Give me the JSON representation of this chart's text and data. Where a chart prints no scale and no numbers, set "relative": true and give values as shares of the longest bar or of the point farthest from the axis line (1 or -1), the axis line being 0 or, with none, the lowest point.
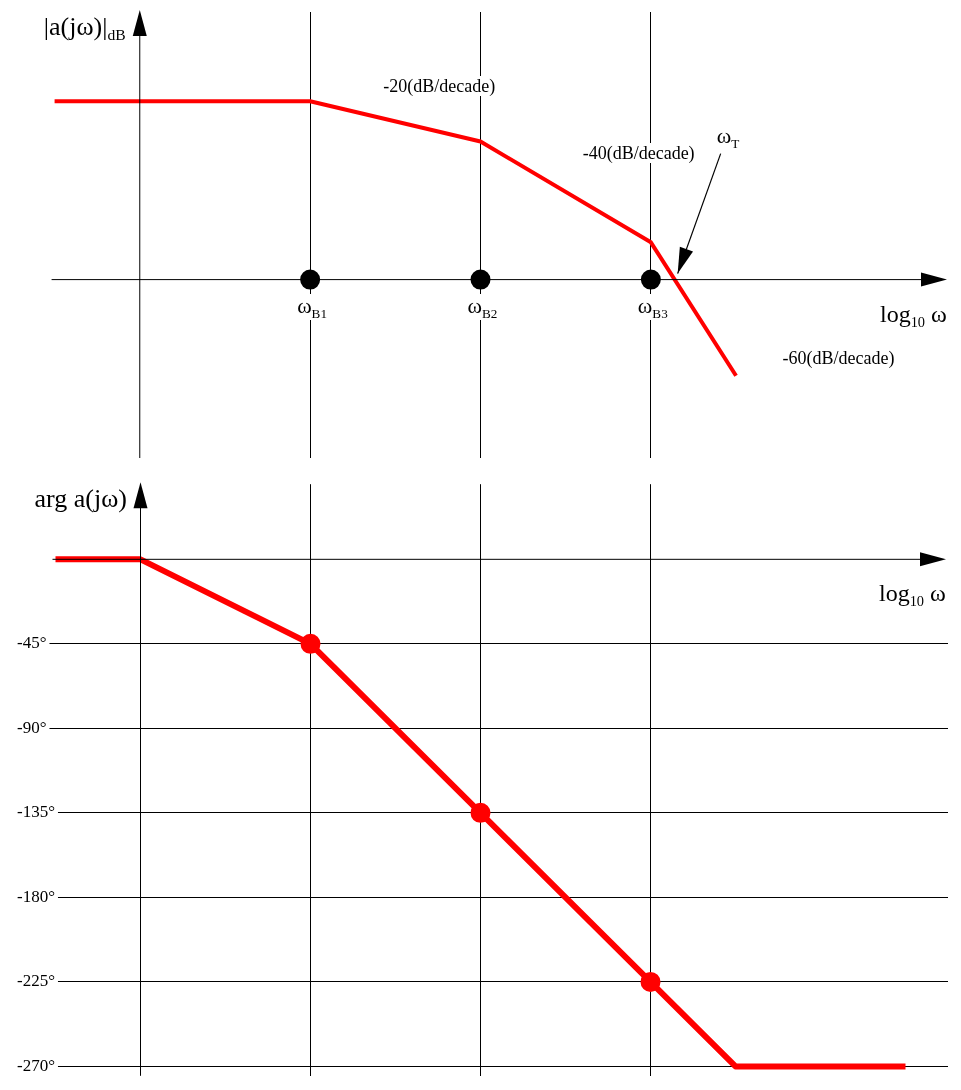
{
  "chart_data": [
    {
      "type": "line",
      "relative": true,
      "ylabel": "|a(jω)|$_{dB}$",
      "xlabel": "log$_{10}$ ω",
      "categories": [
        null,
        null,
        null,
        "ω$_{B1}$",
        null,
        "ω$_{B2}$",
        null,
        "ω$_{B3}$",
        null,
        null,
        null
      ],
      "grid": "x",
      "tick_labels": "x",
      "marker": "none",
      "series": [
        {
          "color": "#ff0000",
          "values": [
            1,
            1,
            null,
            1,
            null,
            0.774,
            null,
            0.209,
            -0.539,
            null,
            null
          ]
        },
        {
          "type": "scatter",
          "marker": "circle",
          "color": "#000000",
          "values": [
            null,
            null,
            null,
            0,
            null,
            0,
            null,
            0,
            null,
            null,
            null
          ]
        }
      ],
      "annotations": [
        "-20(dB/decade)",
        "-40(dB/decade)",
        "-60(dB/decade)",
        "ω$_{T}$"
      ]
    },
    {
      "type": "line",
      "ylabel": "arg a(jω)",
      "xlabel": "log$_{10}$ ω",
      "ylim": [
        -275,
        40
      ],
      "categories": [
        null,
        null,
        null,
        null,
        null,
        null,
        null,
        null,
        null,
        null,
        null
      ],
      "yticks": [
        {
          "value": -45,
          "label": "-45°"
        },
        {
          "value": -90,
          "label": "-90°"
        },
        {
          "value": -135,
          "label": "-135°"
        },
        {
          "value": -180,
          "label": "-180°"
        },
        {
          "value": -225,
          "label": "-225°"
        },
        {
          "value": -270,
          "label": "-270°"
        }
      ],
      "grid": true,
      "tick_labels": "y",
      "marker": "none",
      "series": [
        {
          "color": "#ff0000",
          "values": [
            0,
            0,
            null,
            -45,
            null,
            -135,
            null,
            -225,
            -270,
            null,
            -270
          ]
        },
        {
          "type": "scatter",
          "marker": "circle",
          "color": "#ff0000",
          "values": [
            null,
            null,
            null,
            -45,
            null,
            -135,
            null,
            -225,
            null,
            null,
            null
          ]
        }
      ]
    }
  ]
}
